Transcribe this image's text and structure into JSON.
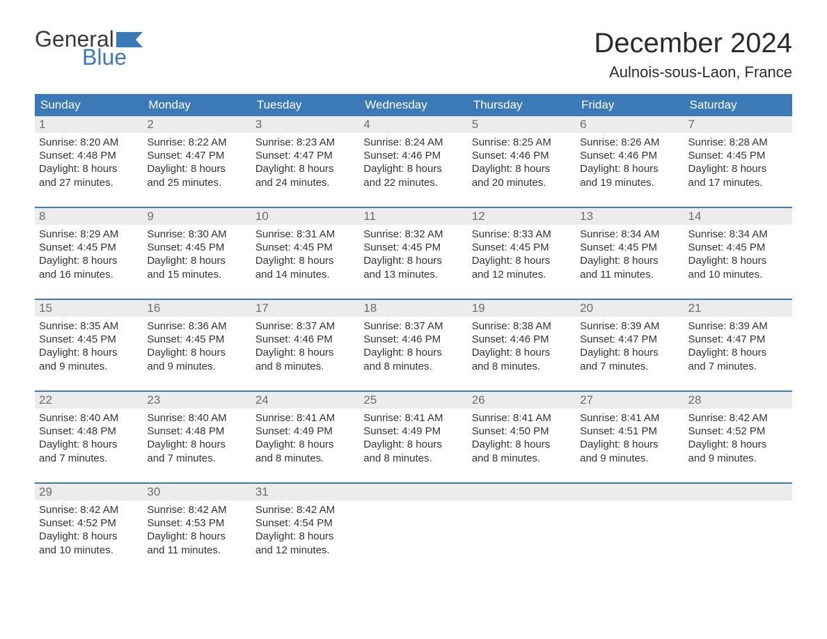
{
  "brand": {
    "word1": "General",
    "word2": "Blue"
  },
  "title": "December 2024",
  "location": "Aulnois-sous-Laon, France",
  "colors": {
    "header_bg": "#3b79b7",
    "header_text": "#ffffff",
    "daynum_bg": "#ececec",
    "daynum_text": "#6b6b6b",
    "body_text": "#333333",
    "rule": "#3b79b7",
    "logo_blue": "#3b79b7",
    "page_bg": "#ffffff"
  },
  "fonts": {
    "title_size_pt": 30,
    "location_size_pt": 16,
    "header_size_pt": 13,
    "daynum_size_pt": 13,
    "body_size_pt": 11
  },
  "weekdays": [
    "Sunday",
    "Monday",
    "Tuesday",
    "Wednesday",
    "Thursday",
    "Friday",
    "Saturday"
  ],
  "weeks": [
    [
      {
        "n": "1",
        "sunrise": "Sunrise: 8:20 AM",
        "sunset": "Sunset: 4:48 PM",
        "d1": "Daylight: 8 hours",
        "d2": "and 27 minutes."
      },
      {
        "n": "2",
        "sunrise": "Sunrise: 8:22 AM",
        "sunset": "Sunset: 4:47 PM",
        "d1": "Daylight: 8 hours",
        "d2": "and 25 minutes."
      },
      {
        "n": "3",
        "sunrise": "Sunrise: 8:23 AM",
        "sunset": "Sunset: 4:47 PM",
        "d1": "Daylight: 8 hours",
        "d2": "and 24 minutes."
      },
      {
        "n": "4",
        "sunrise": "Sunrise: 8:24 AM",
        "sunset": "Sunset: 4:46 PM",
        "d1": "Daylight: 8 hours",
        "d2": "and 22 minutes."
      },
      {
        "n": "5",
        "sunrise": "Sunrise: 8:25 AM",
        "sunset": "Sunset: 4:46 PM",
        "d1": "Daylight: 8 hours",
        "d2": "and 20 minutes."
      },
      {
        "n": "6",
        "sunrise": "Sunrise: 8:26 AM",
        "sunset": "Sunset: 4:46 PM",
        "d1": "Daylight: 8 hours",
        "d2": "and 19 minutes."
      },
      {
        "n": "7",
        "sunrise": "Sunrise: 8:28 AM",
        "sunset": "Sunset: 4:45 PM",
        "d1": "Daylight: 8 hours",
        "d2": "and 17 minutes."
      }
    ],
    [
      {
        "n": "8",
        "sunrise": "Sunrise: 8:29 AM",
        "sunset": "Sunset: 4:45 PM",
        "d1": "Daylight: 8 hours",
        "d2": "and 16 minutes."
      },
      {
        "n": "9",
        "sunrise": "Sunrise: 8:30 AM",
        "sunset": "Sunset: 4:45 PM",
        "d1": "Daylight: 8 hours",
        "d2": "and 15 minutes."
      },
      {
        "n": "10",
        "sunrise": "Sunrise: 8:31 AM",
        "sunset": "Sunset: 4:45 PM",
        "d1": "Daylight: 8 hours",
        "d2": "and 14 minutes."
      },
      {
        "n": "11",
        "sunrise": "Sunrise: 8:32 AM",
        "sunset": "Sunset: 4:45 PM",
        "d1": "Daylight: 8 hours",
        "d2": "and 13 minutes."
      },
      {
        "n": "12",
        "sunrise": "Sunrise: 8:33 AM",
        "sunset": "Sunset: 4:45 PM",
        "d1": "Daylight: 8 hours",
        "d2": "and 12 minutes."
      },
      {
        "n": "13",
        "sunrise": "Sunrise: 8:34 AM",
        "sunset": "Sunset: 4:45 PM",
        "d1": "Daylight: 8 hours",
        "d2": "and 11 minutes."
      },
      {
        "n": "14",
        "sunrise": "Sunrise: 8:34 AM",
        "sunset": "Sunset: 4:45 PM",
        "d1": "Daylight: 8 hours",
        "d2": "and 10 minutes."
      }
    ],
    [
      {
        "n": "15",
        "sunrise": "Sunrise: 8:35 AM",
        "sunset": "Sunset: 4:45 PM",
        "d1": "Daylight: 8 hours",
        "d2": "and 9 minutes."
      },
      {
        "n": "16",
        "sunrise": "Sunrise: 8:36 AM",
        "sunset": "Sunset: 4:45 PM",
        "d1": "Daylight: 8 hours",
        "d2": "and 9 minutes."
      },
      {
        "n": "17",
        "sunrise": "Sunrise: 8:37 AM",
        "sunset": "Sunset: 4:46 PM",
        "d1": "Daylight: 8 hours",
        "d2": "and 8 minutes."
      },
      {
        "n": "18",
        "sunrise": "Sunrise: 8:37 AM",
        "sunset": "Sunset: 4:46 PM",
        "d1": "Daylight: 8 hours",
        "d2": "and 8 minutes."
      },
      {
        "n": "19",
        "sunrise": "Sunrise: 8:38 AM",
        "sunset": "Sunset: 4:46 PM",
        "d1": "Daylight: 8 hours",
        "d2": "and 8 minutes."
      },
      {
        "n": "20",
        "sunrise": "Sunrise: 8:39 AM",
        "sunset": "Sunset: 4:47 PM",
        "d1": "Daylight: 8 hours",
        "d2": "and 7 minutes."
      },
      {
        "n": "21",
        "sunrise": "Sunrise: 8:39 AM",
        "sunset": "Sunset: 4:47 PM",
        "d1": "Daylight: 8 hours",
        "d2": "and 7 minutes."
      }
    ],
    [
      {
        "n": "22",
        "sunrise": "Sunrise: 8:40 AM",
        "sunset": "Sunset: 4:48 PM",
        "d1": "Daylight: 8 hours",
        "d2": "and 7 minutes."
      },
      {
        "n": "23",
        "sunrise": "Sunrise: 8:40 AM",
        "sunset": "Sunset: 4:48 PM",
        "d1": "Daylight: 8 hours",
        "d2": "and 7 minutes."
      },
      {
        "n": "24",
        "sunrise": "Sunrise: 8:41 AM",
        "sunset": "Sunset: 4:49 PM",
        "d1": "Daylight: 8 hours",
        "d2": "and 8 minutes."
      },
      {
        "n": "25",
        "sunrise": "Sunrise: 8:41 AM",
        "sunset": "Sunset: 4:49 PM",
        "d1": "Daylight: 8 hours",
        "d2": "and 8 minutes."
      },
      {
        "n": "26",
        "sunrise": "Sunrise: 8:41 AM",
        "sunset": "Sunset: 4:50 PM",
        "d1": "Daylight: 8 hours",
        "d2": "and 8 minutes."
      },
      {
        "n": "27",
        "sunrise": "Sunrise: 8:41 AM",
        "sunset": "Sunset: 4:51 PM",
        "d1": "Daylight: 8 hours",
        "d2": "and 9 minutes."
      },
      {
        "n": "28",
        "sunrise": "Sunrise: 8:42 AM",
        "sunset": "Sunset: 4:52 PM",
        "d1": "Daylight: 8 hours",
        "d2": "and 9 minutes."
      }
    ],
    [
      {
        "n": "29",
        "sunrise": "Sunrise: 8:42 AM",
        "sunset": "Sunset: 4:52 PM",
        "d1": "Daylight: 8 hours",
        "d2": "and 10 minutes."
      },
      {
        "n": "30",
        "sunrise": "Sunrise: 8:42 AM",
        "sunset": "Sunset: 4:53 PM",
        "d1": "Daylight: 8 hours",
        "d2": "and 11 minutes."
      },
      {
        "n": "31",
        "sunrise": "Sunrise: 8:42 AM",
        "sunset": "Sunset: 4:54 PM",
        "d1": "Daylight: 8 hours",
        "d2": "and 12 minutes."
      },
      {
        "n": "",
        "sunrise": "",
        "sunset": "",
        "d1": "",
        "d2": "",
        "empty": true
      },
      {
        "n": "",
        "sunrise": "",
        "sunset": "",
        "d1": "",
        "d2": "",
        "empty": true
      },
      {
        "n": "",
        "sunrise": "",
        "sunset": "",
        "d1": "",
        "d2": "",
        "empty": true
      },
      {
        "n": "",
        "sunrise": "",
        "sunset": "",
        "d1": "",
        "d2": "",
        "empty": true
      }
    ]
  ]
}
